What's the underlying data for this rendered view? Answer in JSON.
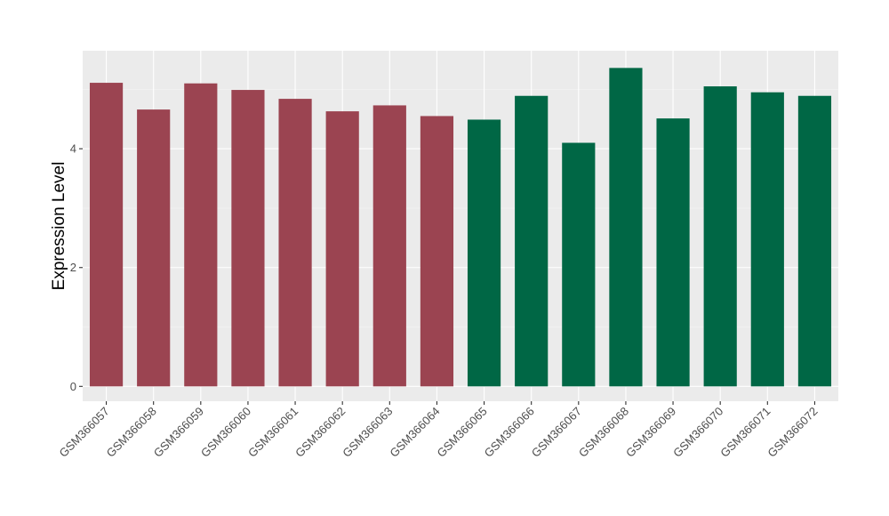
{
  "chart_data": {
    "type": "bar",
    "title": "",
    "xlabel": "",
    "ylabel": "Expression Level",
    "ylim": [
      -0.25,
      5.65
    ],
    "yticks": [
      0,
      2,
      4
    ],
    "grid": true,
    "legend": "none",
    "categories": [
      "GSM366057",
      "GSM366058",
      "GSM366059",
      "GSM366060",
      "GSM366061",
      "GSM366062",
      "GSM366063",
      "GSM366064",
      "GSM366065",
      "GSM366066",
      "GSM366067",
      "GSM366068",
      "GSM366069",
      "GSM366070",
      "GSM366071",
      "GSM366072"
    ],
    "values": [
      5.11,
      4.66,
      5.1,
      4.99,
      4.84,
      4.63,
      4.73,
      4.55,
      4.49,
      4.89,
      4.1,
      5.36,
      4.51,
      5.05,
      4.95,
      4.89
    ],
    "bar_colors": [
      "#9b4451",
      "#9b4451",
      "#9b4451",
      "#9b4451",
      "#9b4451",
      "#9b4451",
      "#9b4451",
      "#9b4451",
      "#006745",
      "#006745",
      "#006745",
      "#006745",
      "#006745",
      "#006745",
      "#006745",
      "#006745"
    ]
  }
}
